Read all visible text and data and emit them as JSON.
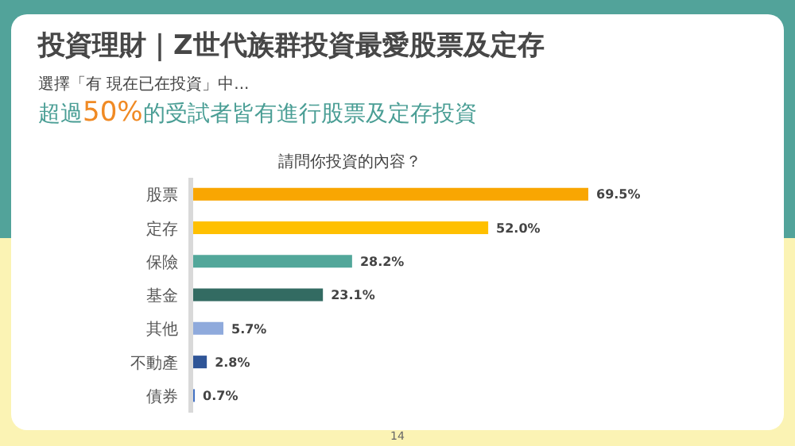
{
  "chart_data": {
    "type": "bar",
    "orientation": "horizontal",
    "title": "投資理財｜Z世代族群投資最愛股票及定存",
    "subtitle": "請問你投資的內容？",
    "annotations": [
      "選擇「有 現在已在投資」中...",
      "超過50%的受試者皆有進行股票及定存投資",
      "14"
    ],
    "categories": [
      "股票",
      "定存",
      "保險",
      "基金",
      "其他",
      "不動產",
      "債券"
    ],
    "values": [
      69.5,
      52.0,
      28.2,
      23.1,
      5.7,
      2.8,
      0.7
    ],
    "value_labels": [
      "69.5%",
      "52.0%",
      "28.2%",
      "23.1%",
      "5.7%",
      "2.8%",
      "0.7%"
    ],
    "colors": [
      "#f9a602",
      "#ffc000",
      "#52a79a",
      "#336b62",
      "#8faadc",
      "#2f5597",
      "#4472c4"
    ]
  }
}
